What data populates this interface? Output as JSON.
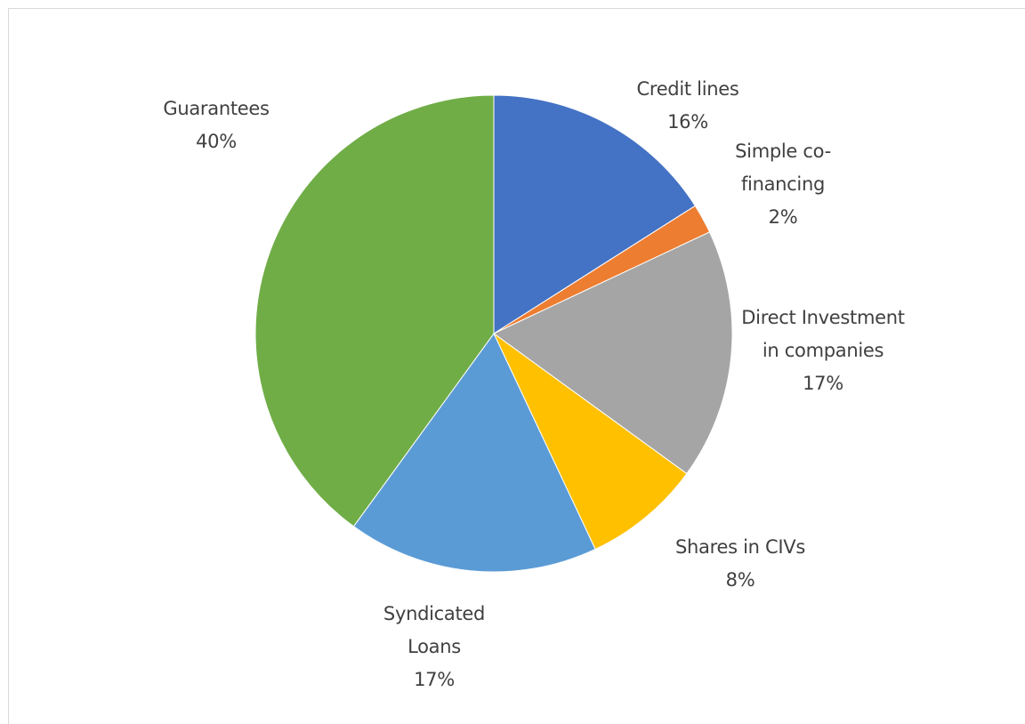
{
  "chart_data": {
    "type": "pie",
    "categories": [
      "Credit lines",
      "Simple co-financing",
      "Direct Investment in companies",
      "Shares in CIVs",
      "Syndicated Loans",
      "Guarantees"
    ],
    "values": [
      16,
      2,
      17,
      8,
      17,
      40
    ],
    "value_labels": [
      "16%",
      "2%",
      "17%",
      "8%",
      "17%",
      "40%"
    ],
    "colors": [
      "#4472c4",
      "#ed7d31",
      "#a5a5a5",
      "#ffc000",
      "#5b9bd5",
      "#70ad47"
    ]
  }
}
